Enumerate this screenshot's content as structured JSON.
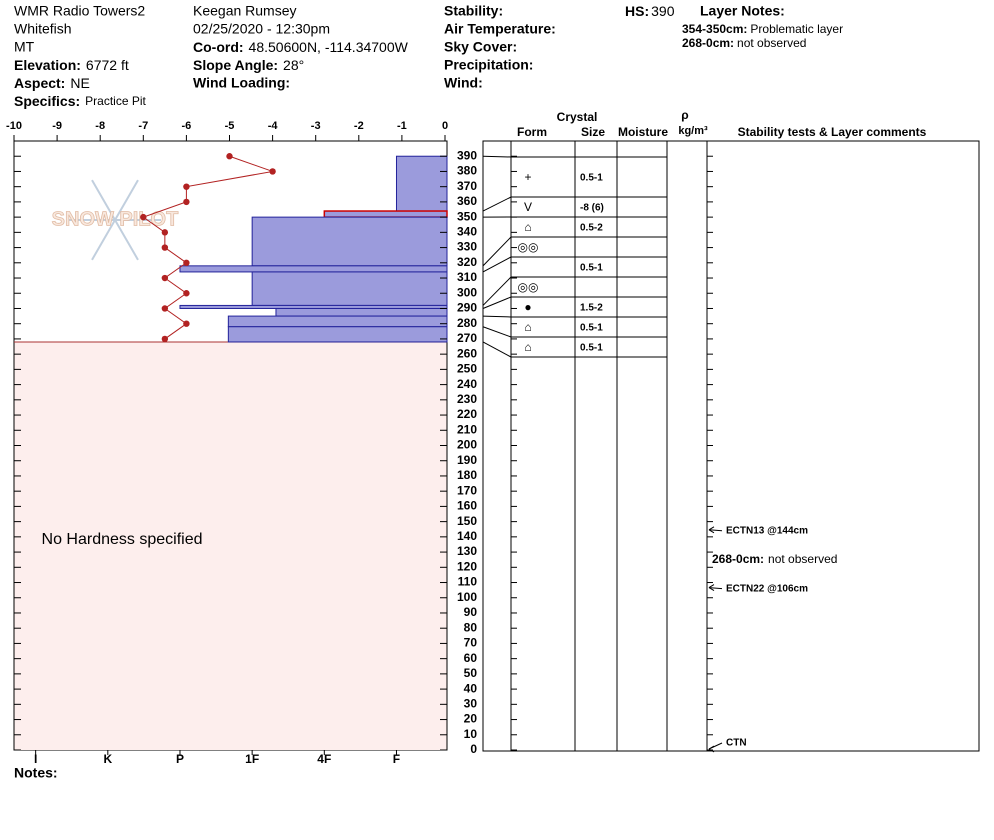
{
  "site": {
    "name": "WMR Radio Towers2",
    "location": "Whitefish",
    "state": "MT",
    "elevation": {
      "label": "Elevation:",
      "value": "6772 ft"
    },
    "aspect": {
      "label": "Aspect:",
      "value": "NE"
    },
    "specifics": {
      "label": "Specifics:",
      "value": "Practice Pit"
    }
  },
  "observer": {
    "name": "Keegan Rumsey",
    "datetime": "02/25/2020 - 12:30pm",
    "coord": {
      "label": "Co-ord:",
      "value": "48.50600N, -114.34700W"
    },
    "slope": {
      "label": "Slope Angle:",
      "value": "28°"
    },
    "wind_loading": {
      "label": "Wind Loading:"
    }
  },
  "conditions": [
    "Stability:",
    "Air Temperature:",
    "Sky Cover:",
    "Precipitation:",
    "Wind:"
  ],
  "hs": {
    "label": "HS:",
    "value": 390
  },
  "layer_notes": {
    "title": "Layer Notes:",
    "items": [
      {
        "range": "354-350cm:",
        "note": "Problematic layer"
      },
      {
        "range": "268-0cm:",
        "note": "not observed"
      }
    ]
  },
  "logo": "SNOW PILOT",
  "notes_label": "Notes:",
  "chart_data": {
    "type": "snow-profile",
    "ylim": [
      0,
      400
    ],
    "yticks": [
      0,
      10,
      20,
      30,
      40,
      50,
      60,
      70,
      80,
      90,
      100,
      110,
      120,
      130,
      140,
      150,
      160,
      170,
      180,
      190,
      200,
      210,
      220,
      230,
      240,
      250,
      260,
      270,
      280,
      290,
      300,
      310,
      320,
      330,
      340,
      350,
      360,
      370,
      380,
      390
    ],
    "temperature": {
      "xlim": [
        -10,
        0
      ],
      "xticks": [
        -10,
        -9,
        -8,
        -7,
        -6,
        -5,
        -4,
        -3,
        -2,
        -1,
        0
      ],
      "color": "#b22222",
      "depths": [
        390,
        380,
        370,
        360,
        350,
        340,
        330,
        320,
        310,
        300,
        290,
        280,
        270
      ],
      "values": [
        -5,
        -4,
        -6,
        -6,
        -7,
        -6.5,
        -6.5,
        -6,
        -6.5,
        -6,
        -6.5,
        -6,
        -6.5
      ]
    },
    "hardness": {
      "xlim": [
        6.3,
        0.3
      ],
      "color": "#9b9bdc",
      "xticks": [
        {
          "value": 6,
          "label": "I"
        },
        {
          "value": 5,
          "label": "K"
        },
        {
          "value": 4,
          "label": "P"
        },
        {
          "value": 3,
          "label": "1F"
        },
        {
          "value": 2,
          "label": "4F"
        },
        {
          "value": 1,
          "label": "F"
        }
      ]
    },
    "no_hardness_text": "No Hardness specified",
    "layers": [
      {
        "top": 390,
        "bottom": 354,
        "hardness": 1,
        "form": "+",
        "size": "0.5-1"
      },
      {
        "top": 354,
        "bottom": 350,
        "hardness": 2,
        "form": "V",
        "size": "-8 (6)",
        "problematic": true
      },
      {
        "top": 350,
        "bottom": 318,
        "hardness": 3,
        "form": "⌂",
        "size": "0.5-2"
      },
      {
        "top": 318,
        "bottom": 314,
        "hardness": 4,
        "form": "◎◎"
      },
      {
        "top": 314,
        "bottom": 292,
        "hardness": 3,
        "size": "0.5-1"
      },
      {
        "top": 292,
        "bottom": 290,
        "hardness": 4,
        "form": "◎◎"
      },
      {
        "top": 290,
        "bottom": 285,
        "hardness": 2.67,
        "form": "●",
        "size": "1.5-2"
      },
      {
        "top": 285,
        "bottom": 278,
        "hardness": 3.33,
        "form": "⌂",
        "size": "0.5-1"
      },
      {
        "top": 278,
        "bottom": 268,
        "hardness": 3.33,
        "form": "⌂",
        "size": "0.5-1"
      }
    ],
    "table_headers": {
      "crystal": "Crystal",
      "form": "Form",
      "size": "Size",
      "moisture": "Moisture",
      "rho": "ρ",
      "density_unit": "kg/m³",
      "comments": "Stability tests & Layer comments"
    },
    "stability_tests": [
      {
        "label": "ECTN13 @144cm",
        "depth": 144
      },
      {
        "label": "ECTN22 @106cm",
        "depth": 106
      },
      {
        "label": "CTN",
        "depth": 0
      }
    ]
  }
}
